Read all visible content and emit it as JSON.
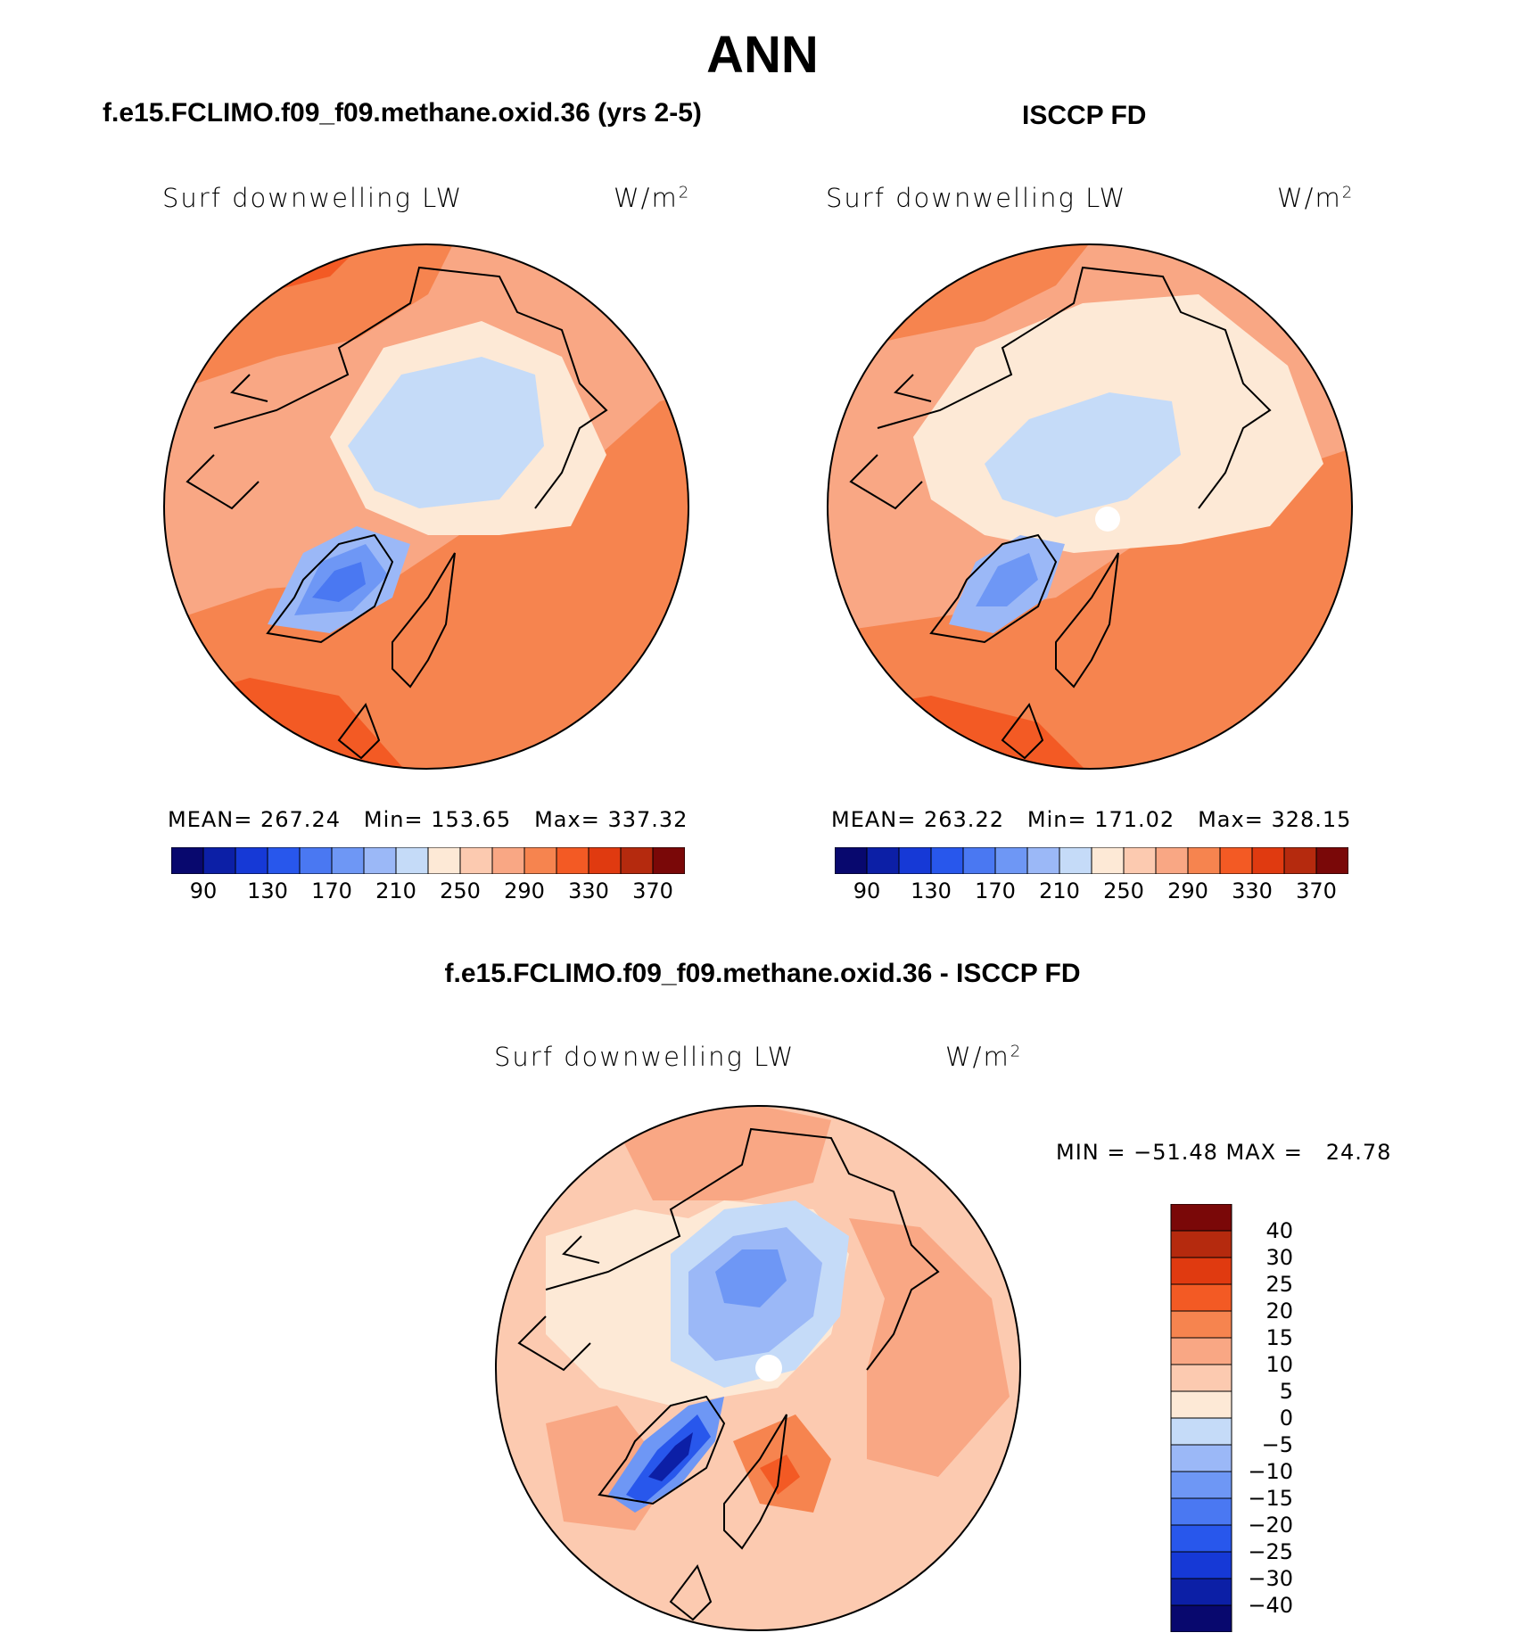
{
  "main_title": "ANN",
  "panels": [
    {
      "case_title": "f.e15.FCLIMO.f09_f09.methane.oxid.36 (yrs 2-5)",
      "variable": "Surf  downwelling  LW",
      "units": "W/m",
      "units_sup": "2",
      "mean_label": "MEAN=",
      "mean": "267.24",
      "min_label": "Min=",
      "min": "153.65",
      "max_label": "Max=",
      "max": "337.32"
    },
    {
      "case_title": "ISCCP FD",
      "variable": "Surf  downwelling  LW",
      "units": "W/m",
      "units_sup": "2",
      "mean_label": "MEAN=",
      "mean": "263.22",
      "min_label": "Min=",
      "min": "171.02",
      "max_label": "Max=",
      "max": "328.15"
    },
    {
      "case_title": "f.e15.FCLIMO.f09_f09.methane.oxid.36 - ISCCP FD",
      "variable": "Surf  downwelling  LW",
      "units": "W/m",
      "units_sup": "2",
      "range_text": "MIN = −51.48 MAX =   24.78"
    }
  ],
  "chart_data": [
    {
      "type": "heatmap",
      "title": "f.e15.FCLIMO.f09_f09.methane.oxid.36 (yrs 2-5)",
      "subtitle": "Surf downwelling LW",
      "units": "W/m2",
      "projection": "north polar stereographic",
      "stats": {
        "mean": 267.24,
        "min": 153.65,
        "max": 337.32
      },
      "colorbar_ticks": [
        "90",
        "130",
        "170",
        "210",
        "250",
        "290",
        "330",
        "370"
      ],
      "contour_levels": [
        90,
        110,
        130,
        150,
        170,
        190,
        210,
        230,
        250,
        270,
        290,
        310,
        330,
        350,
        370
      ]
    },
    {
      "type": "heatmap",
      "title": "ISCCP FD",
      "subtitle": "Surf downwelling LW",
      "units": "W/m2",
      "projection": "north polar stereographic",
      "stats": {
        "mean": 263.22,
        "min": 171.02,
        "max": 328.15
      },
      "colorbar_ticks": [
        "90",
        "130",
        "170",
        "210",
        "250",
        "290",
        "330",
        "370"
      ],
      "contour_levels": [
        90,
        110,
        130,
        150,
        170,
        190,
        210,
        230,
        250,
        270,
        290,
        310,
        330,
        350,
        370
      ]
    },
    {
      "type": "heatmap",
      "title": "f.e15.FCLIMO.f09_f09.methane.oxid.36 - ISCCP FD",
      "subtitle": "Surf downwelling LW",
      "units": "W/m2",
      "projection": "north polar stereographic",
      "stats": {
        "min": -51.48,
        "max": 24.78
      },
      "colorbar_ticks": [
        "40",
        "30",
        "25",
        "20",
        "15",
        "10",
        "5",
        "0",
        "−5",
        "−10",
        "−15",
        "−20",
        "−25",
        "−30",
        "−40"
      ],
      "contour_levels": [
        -40,
        -30,
        -25,
        -20,
        -15,
        -10,
        -5,
        0,
        5,
        10,
        15,
        20,
        25,
        30,
        40
      ]
    }
  ],
  "colors": {
    "scale16": [
      "#08086e",
      "#0c1fa6",
      "#1639d6",
      "#2857ec",
      "#4a78f2",
      "#6e97f5",
      "#9bb8f7",
      "#c5dbf8",
      "#fde9d6",
      "#fccab0",
      "#f9a784",
      "#f6844f",
      "#f35a24",
      "#e03a10",
      "#b52a0e",
      "#7a0808"
    ]
  }
}
